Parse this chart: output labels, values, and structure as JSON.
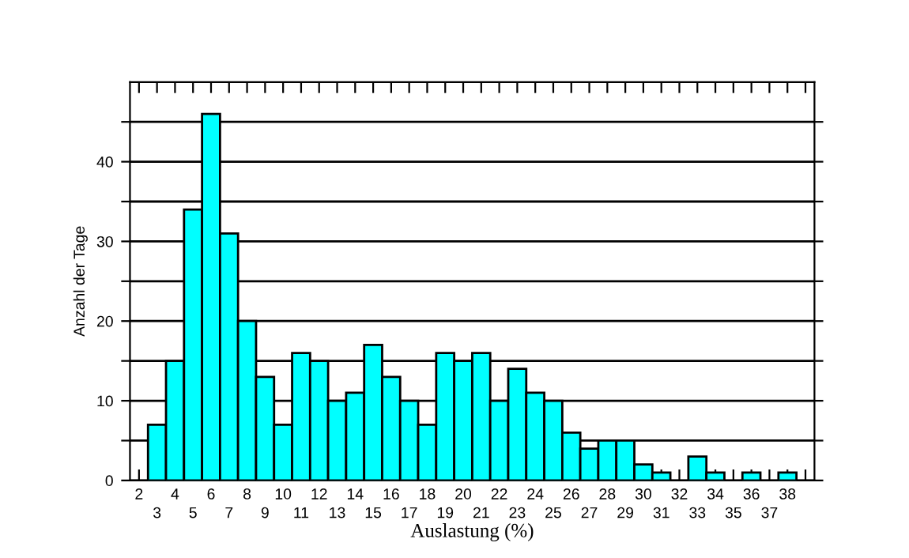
{
  "chart_data": {
    "type": "bar",
    "xlabel": "Auslastung (%)",
    "ylabel": "Anzahl der Tage",
    "categories": [
      "2",
      "3",
      "4",
      "5",
      "6",
      "7",
      "8",
      "9",
      "10",
      "11",
      "12",
      "13",
      "14",
      "15",
      "16",
      "17",
      "18",
      "19",
      "20",
      "21",
      "22",
      "23",
      "24",
      "25",
      "26",
      "27",
      "28",
      "29",
      "30",
      "31",
      "32",
      "33",
      "34",
      "35",
      "36",
      "37",
      "38",
      null
    ],
    "values": [
      0,
      7,
      15,
      34,
      46,
      31,
      20,
      13,
      7,
      16,
      15,
      10,
      11,
      17,
      13,
      10,
      7,
      16,
      15,
      16,
      10,
      14,
      11,
      10,
      6,
      4,
      5,
      5,
      2,
      1,
      0,
      3,
      1,
      0,
      1,
      0,
      1,
      0
    ],
    "color": "#00ffff",
    "ylim": [
      0,
      50
    ],
    "yticks": [
      0,
      {
        "value": 5,
        "label": null
      },
      10,
      {
        "value": 15,
        "label": null
      },
      20,
      {
        "value": 25,
        "label": null
      },
      30,
      {
        "value": 35,
        "label": null
      },
      40,
      {
        "value": 45,
        "label": null
      }
    ],
    "grid": "y",
    "legend": false
  }
}
